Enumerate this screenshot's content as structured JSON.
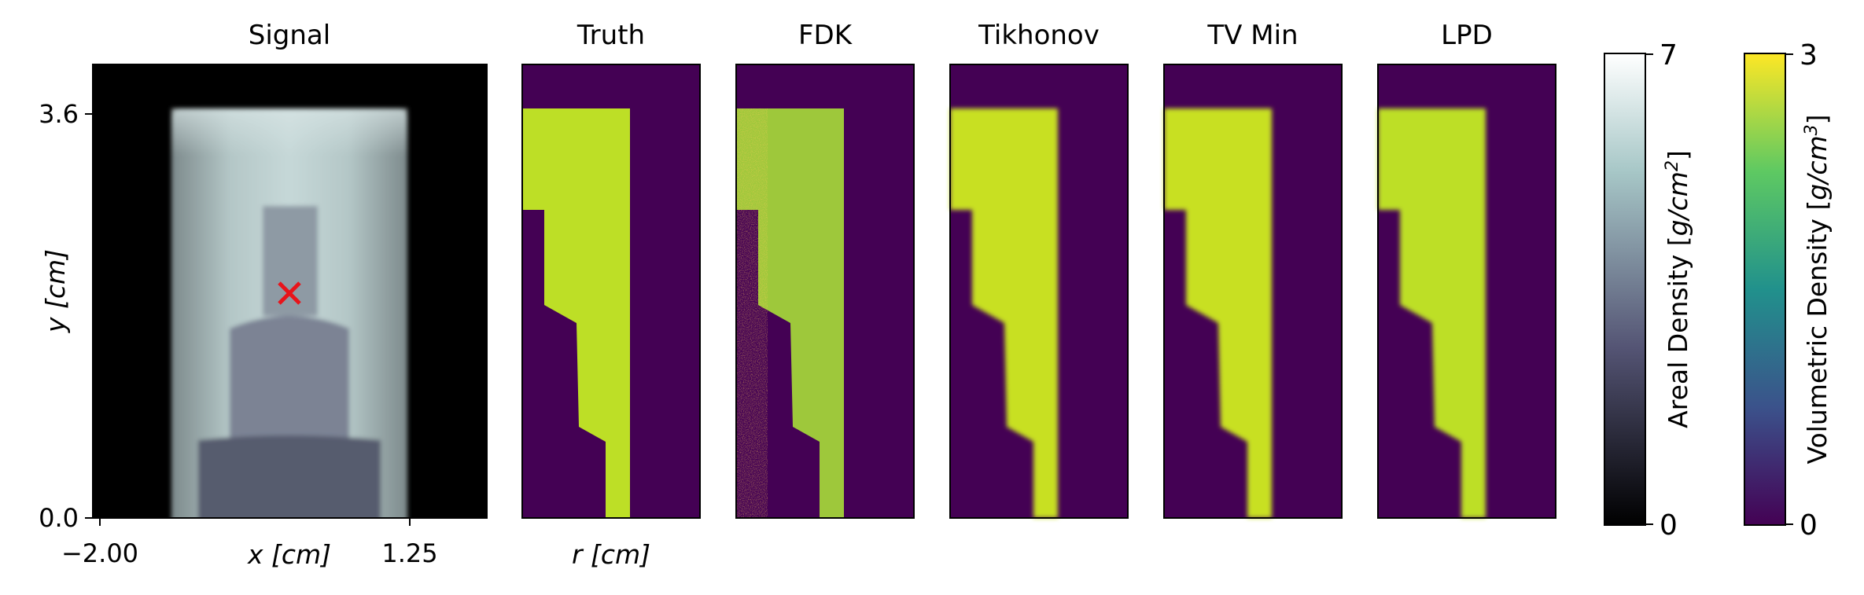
{
  "figure": {
    "colors": {
      "axis": "#000000",
      "marker": "#e8141b",
      "viridis_low": "#440154",
      "viridis_high": "#bddf26"
    }
  },
  "chart_data": [
    {
      "type": "heatmap",
      "title": "Signal",
      "colormap": "bone",
      "xlabel": "x [cm]",
      "ylabel": "y [cm]",
      "xlim": [
        -2.0,
        1.25
      ],
      "ylim": [
        0.0,
        3.6
      ],
      "xticks": [
        -2.0,
        1.25
      ],
      "xtick_labels": [
        "−2.00",
        "1.25"
      ],
      "yticks": [
        0.0,
        3.6
      ],
      "ytick_labels": [
        "0.0",
        "3.6"
      ],
      "marker": {
        "symbol": "x",
        "color": "#e8141b"
      }
    },
    {
      "type": "heatmap",
      "title": "Truth",
      "colormap": "viridis",
      "xlabel": "r [cm]"
    },
    {
      "type": "heatmap",
      "title": "FDK",
      "colormap": "viridis"
    },
    {
      "type": "heatmap",
      "title": "Tikhonov",
      "colormap": "viridis"
    },
    {
      "type": "heatmap",
      "title": "TV Min",
      "colormap": "viridis"
    },
    {
      "type": "heatmap",
      "title": "LPD",
      "colormap": "viridis"
    }
  ],
  "colorbars": [
    {
      "label": "Areal Density",
      "unit": "[g/cm²]",
      "colormap": "bone",
      "min": 0,
      "max": 7,
      "min_label": "0",
      "max_label": "7"
    },
    {
      "label": "Volumetric Density",
      "unit": "[g/cm³]",
      "colormap": "viridis",
      "min": 0,
      "max": 3,
      "min_label": "0",
      "max_label": "3"
    }
  ],
  "labels": {
    "x_var": "x",
    "x_unit": "[cm]",
    "y_var": "y",
    "y_unit": "[cm]",
    "r_var": "r",
    "r_unit": "[cm]",
    "cb1_name": "Areal Density [",
    "cb1_unit": "g/cm",
    "cb1_exp": "2",
    "cb1_end": "]",
    "cb2_name": "Volumetric Density [",
    "cb2_unit": "g/cm",
    "cb2_exp": "3",
    "cb2_end": "]"
  }
}
